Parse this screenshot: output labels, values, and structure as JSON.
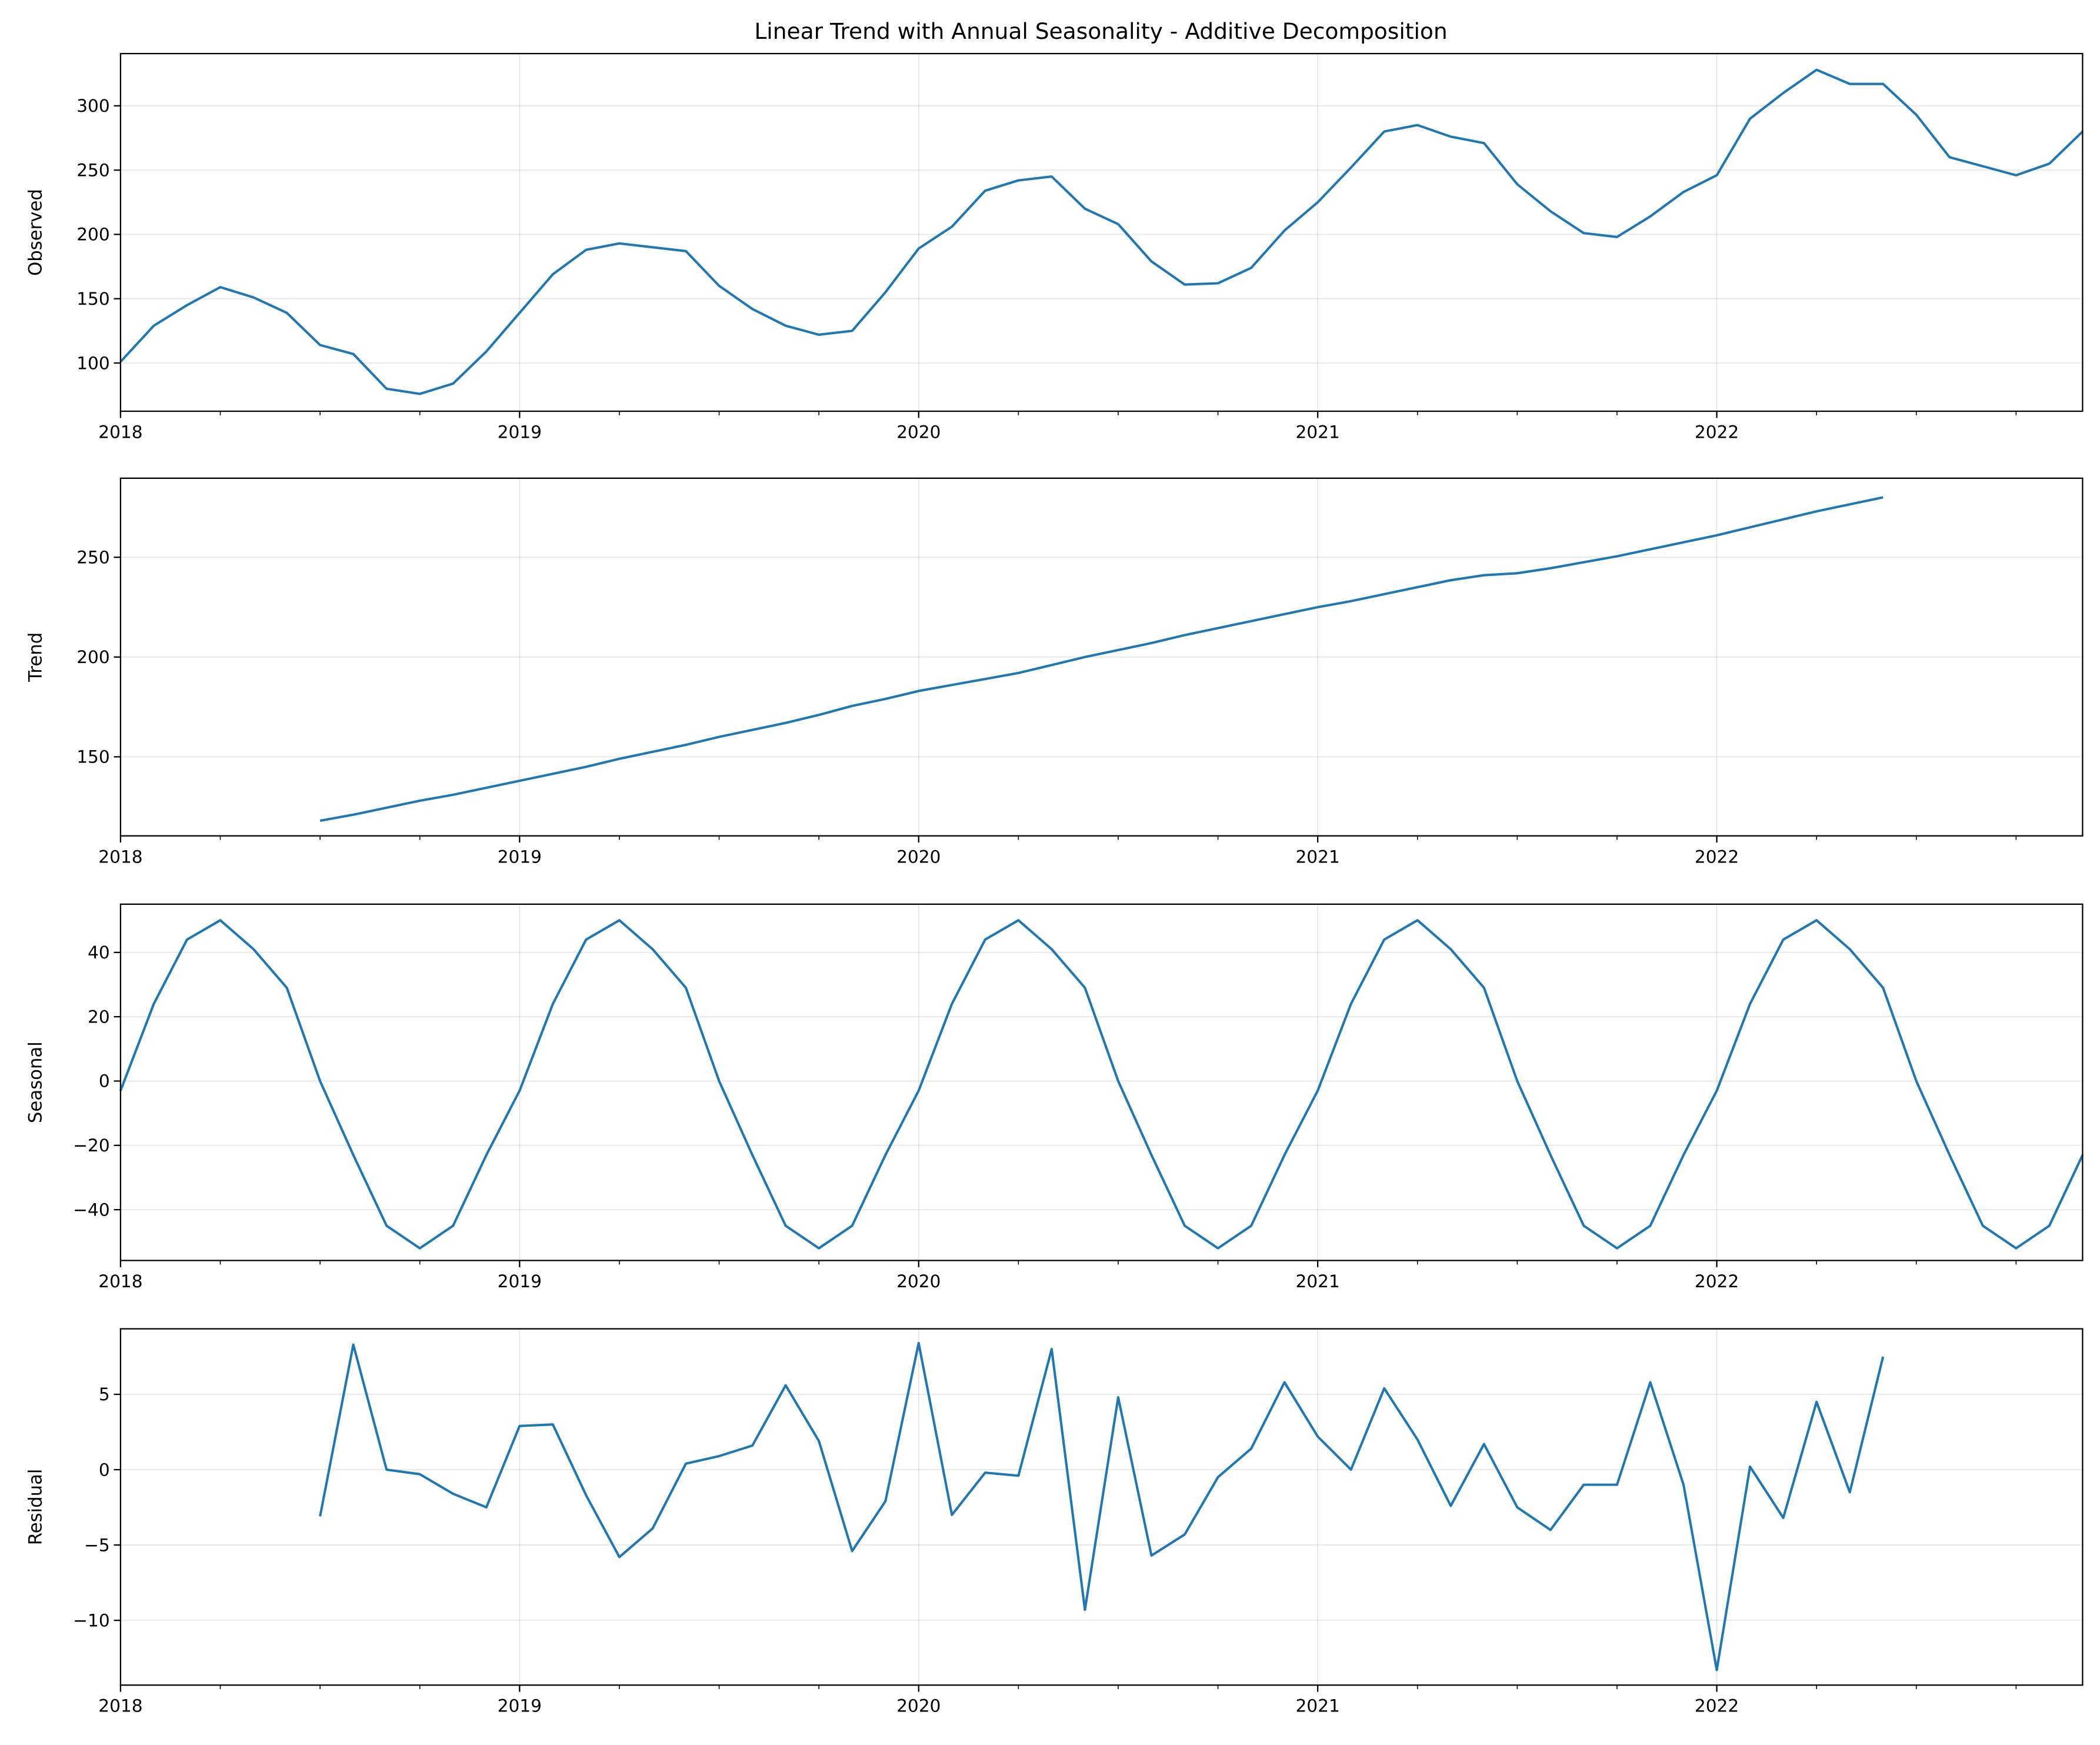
{
  "chart_data": [
    {
      "type": "line",
      "title": "Linear Trend with Annual Seasonality - Additive Decomposition",
      "ylabel": "Observed",
      "x_start": "2018-01",
      "x_end": "2022-12",
      "xticks": [
        "2018",
        "2019",
        "2020",
        "2021",
        "2022"
      ],
      "yticks": [
        100,
        150,
        200,
        250,
        300
      ],
      "ylim": [
        62.5,
        340.6
      ],
      "start_index": 0,
      "values": [
        101,
        129,
        145,
        159,
        151,
        139,
        114,
        107,
        80,
        76,
        84,
        109,
        139,
        169,
        188,
        193,
        190,
        187,
        160,
        142,
        129,
        122,
        125,
        155,
        189,
        206,
        234,
        242,
        245,
        220,
        208,
        179,
        161,
        162,
        174,
        203,
        225,
        252,
        280,
        285,
        276,
        271,
        239,
        218,
        201,
        198,
        214,
        233,
        246,
        290,
        310,
        328,
        317,
        317,
        293,
        260,
        253,
        246,
        255,
        280
      ],
      "color": "#1f77b4",
      "grid": true
    },
    {
      "type": "line",
      "ylabel": "Trend",
      "xticks": [
        "2018",
        "2019",
        "2020",
        "2021",
        "2022"
      ],
      "yticks": [
        150,
        200,
        250
      ],
      "ylim": [
        110.4,
        289.6
      ],
      "start_index": 6,
      "values": [
        118,
        121,
        124.5,
        128,
        131,
        134.5,
        138,
        141.5,
        145,
        149,
        152.5,
        156,
        160,
        163.5,
        167,
        171,
        175.5,
        179,
        183,
        186,
        189,
        192,
        196,
        200,
        203.5,
        207,
        211,
        214.5,
        218,
        221.5,
        225,
        228,
        231.5,
        235,
        238.5,
        241,
        242,
        244.5,
        247.5,
        250.5,
        254,
        257.5,
        261,
        265,
        269,
        273,
        276.5,
        280
      ],
      "color": "#1f77b4",
      "grid": true
    },
    {
      "type": "line",
      "ylabel": "Seasonal",
      "xticks": [
        "2018",
        "2019",
        "2020",
        "2021",
        "2022"
      ],
      "yticks": [
        -40,
        -20,
        0,
        20,
        40
      ],
      "ylim": [
        -55.8,
        55
      ],
      "start_index": 0,
      "values": [
        -3,
        24,
        44,
        50,
        41,
        29,
        0,
        -23,
        -45,
        -52,
        -45,
        -23,
        -3,
        24,
        44,
        50,
        41,
        29,
        0,
        -23,
        -45,
        -52,
        -45,
        -23,
        -3,
        24,
        44,
        50,
        41,
        29,
        0,
        -23,
        -45,
        -52,
        -45,
        -23,
        -3,
        24,
        44,
        50,
        41,
        29,
        0,
        -23,
        -45,
        -52,
        -45,
        -23,
        -3,
        24,
        44,
        50,
        41,
        29,
        0,
        -23,
        -45,
        -52,
        -45,
        -23
      ],
      "color": "#1f77b4",
      "grid": true
    },
    {
      "type": "line",
      "ylabel": "Residual",
      "xticks": [
        "2018",
        "2019",
        "2020",
        "2021",
        "2022"
      ],
      "yticks": [
        -10,
        -5,
        0,
        5
      ],
      "ylim": [
        -14.3,
        9.35
      ],
      "start_index": 6,
      "values": [
        -3.1,
        8.3,
        0,
        -0.3,
        -1.6,
        -2.5,
        2.9,
        3.0,
        -1.7,
        -5.8,
        -3.9,
        0.4,
        0.9,
        1.6,
        5.6,
        1.9,
        -5.4,
        -2.1,
        8.4,
        -3.0,
        -0.2,
        -0.4,
        8.0,
        -9.3,
        4.8,
        -5.7,
        -4.3,
        -0.5,
        1.4,
        5.8,
        2.2,
        0,
        5.4,
        2.0,
        -2.4,
        1.7,
        -2.5,
        -4.0,
        -1.0,
        -1.0,
        5.8,
        -1.0,
        -13.3,
        0.2,
        -3.2,
        4.5,
        -1.5,
        7.5
      ],
      "color": "#1f77b4",
      "grid": true
    }
  ]
}
